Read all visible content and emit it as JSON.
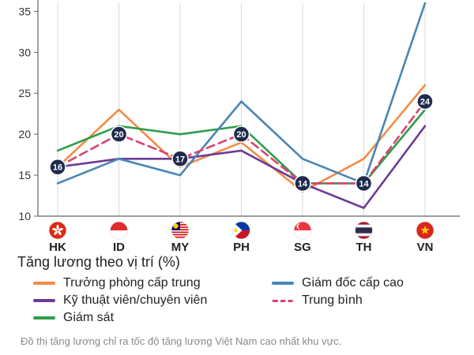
{
  "chart_data": {
    "type": "line",
    "categories": [
      "HK",
      "ID",
      "MY",
      "PH",
      "SG",
      "TH",
      "VN"
    ],
    "ylim": [
      10,
      36
    ],
    "yticks": [
      10,
      15,
      20,
      25,
      30,
      35
    ],
    "grid": "vertical",
    "series": [
      {
        "name": "Trưởng phòng cấp trung",
        "color": "#f28c48",
        "dashed": false,
        "values": [
          16,
          23,
          16,
          19,
          13,
          17,
          26
        ]
      },
      {
        "name": "Kỹ thuật viên/chuyên viên",
        "color": "#6d3a96",
        "dashed": false,
        "values": [
          16,
          17,
          17,
          18,
          14,
          11,
          21
        ]
      },
      {
        "name": "Giám sát",
        "color": "#2f9e48",
        "dashed": false,
        "values": [
          18,
          21,
          20,
          21,
          14,
          14,
          23
        ]
      },
      {
        "name": "Giám đốc cấp cao",
        "color": "#4a86b4",
        "dashed": false,
        "values": [
          14,
          17,
          15,
          24,
          17,
          14,
          36
        ]
      },
      {
        "name": "Trung bình",
        "color": "#d9436f",
        "dashed": true,
        "values": [
          16,
          20,
          17,
          20,
          14,
          14,
          24
        ]
      }
    ],
    "average_labels": [
      {
        "label": "16",
        "value": 16
      },
      {
        "label": "20",
        "value": 20
      },
      {
        "label": "17",
        "value": 17
      },
      {
        "label": "20",
        "value": 20
      },
      {
        "label": "14",
        "value": 14
      },
      {
        "label": "14",
        "value": 14
      },
      {
        "label": "24",
        "value": 24
      }
    ],
    "flags": [
      "hong-kong-flag-icon",
      "indonesia-flag-icon",
      "malaysia-flag-icon",
      "philippines-flag-icon",
      "singapore-flag-icon",
      "thailand-flag-icon",
      "vietnam-flag-icon"
    ],
    "badge_color": "#1f2a4d"
  },
  "legend": {
    "title": "Tăng lương theo vị trí (%)"
  },
  "caption": "Đồ thị tăng lương chỉ ra tốc độ tăng lương Việt Nam cao nhất khu vực."
}
